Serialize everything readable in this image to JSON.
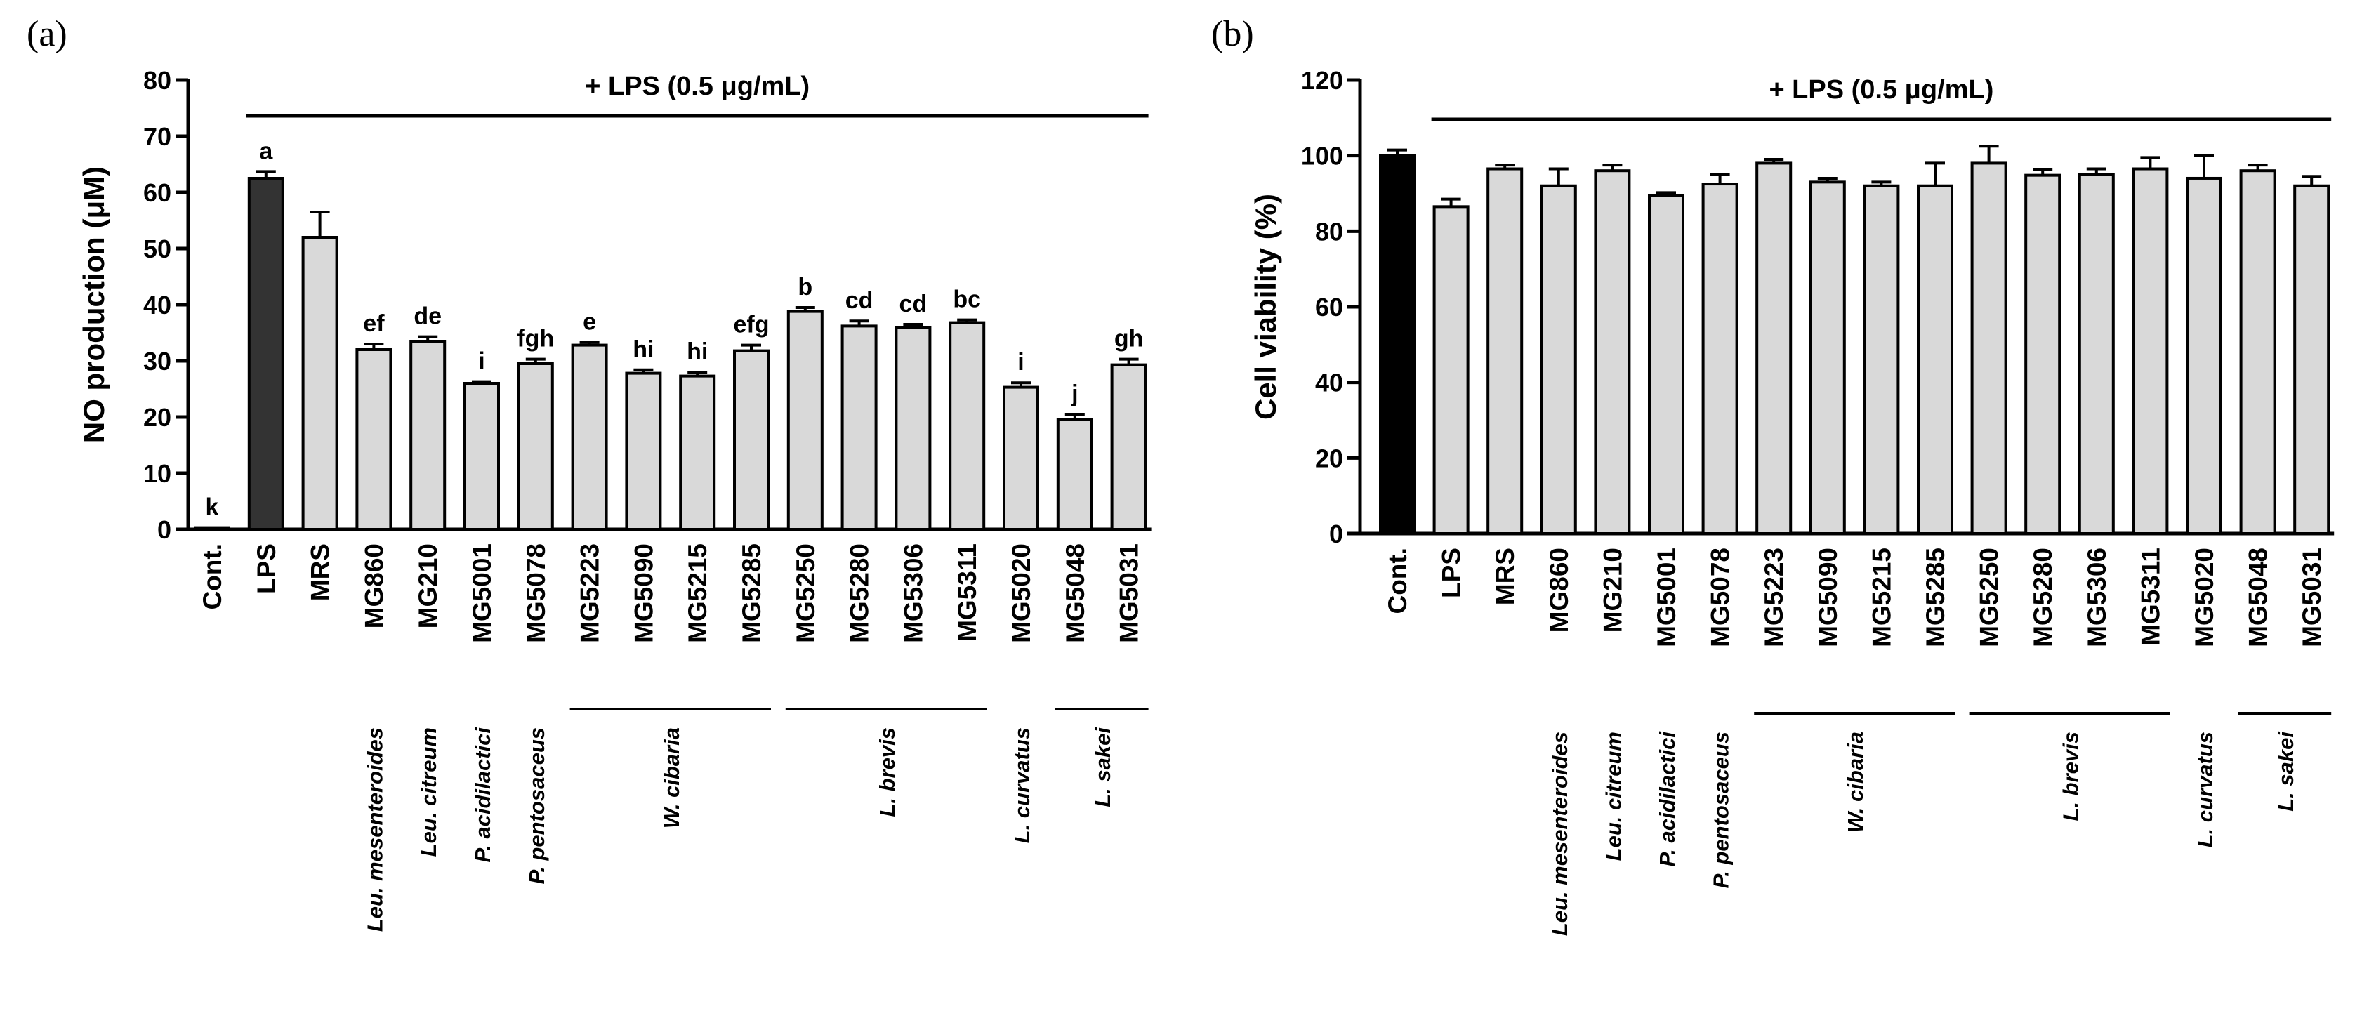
{
  "chart_data": [
    {
      "panel_label": "(a)",
      "type": "bar",
      "title": "+ LPS (0.5 μg/mL)",
      "xlabel": "",
      "ylabel": "NO production (μM)",
      "ylim": [
        0,
        80
      ],
      "yticks": [
        "0",
        "10",
        "20",
        "30",
        "40",
        "50",
        "60",
        "70",
        "80"
      ],
      "categories": [
        "Cont.",
        "LPS",
        "MRS",
        "MG860",
        "MG210",
        "MG5001",
        "MG5078",
        "MG5223",
        "MG5090",
        "MG5215",
        "MG5285",
        "MG5250",
        "MG5280",
        "MG5306",
        "MG5311",
        "MG5020",
        "MG5048",
        "MG5031"
      ],
      "values": [
        0.3,
        62.5,
        52.0,
        32.0,
        33.5,
        26.0,
        29.5,
        32.8,
        27.8,
        27.3,
        31.8,
        38.8,
        36.2,
        36.0,
        36.8,
        25.3,
        19.5,
        29.3
      ],
      "errors": [
        0,
        1.2,
        4.5,
        1.0,
        0.8,
        0.3,
        0.8,
        0.5,
        0.6,
        0.7,
        1.0,
        0.7,
        0.9,
        0.5,
        0.5,
        0.8,
        1.0,
        1.0
      ],
      "significance_letters": [
        "k",
        "a",
        "",
        "ef",
        "de",
        "i",
        "fgh",
        "e",
        "hi",
        "hi",
        "efg",
        "b",
        "cd",
        "cd",
        "bc",
        "i",
        "j",
        "gh"
      ],
      "bar_colors": [
        "#d9d9d9",
        "#333333",
        "#d9d9d9",
        "#d9d9d9",
        "#d9d9d9",
        "#d9d9d9",
        "#d9d9d9",
        "#d9d9d9",
        "#d9d9d9",
        "#d9d9d9",
        "#d9d9d9",
        "#d9d9d9",
        "#d9d9d9",
        "#d9d9d9",
        "#d9d9d9",
        "#d9d9d9",
        "#d9d9d9",
        "#d9d9d9"
      ],
      "lps_bracket": {
        "from_index": 1,
        "to_index": 17
      },
      "species_groups": [
        {
          "label": "Leu. mesenteroides",
          "from_index": 3,
          "to_index": 3
        },
        {
          "label": "Leu. citreum",
          "from_index": 4,
          "to_index": 4
        },
        {
          "label": "P. acidilactici",
          "from_index": 5,
          "to_index": 5
        },
        {
          "label": "P. pentosaceus",
          "from_index": 6,
          "to_index": 6
        },
        {
          "label": "W. cibaria",
          "from_index": 7,
          "to_index": 10
        },
        {
          "label": "L. brevis",
          "from_index": 11,
          "to_index": 14
        },
        {
          "label": "L. curvatus",
          "from_index": 15,
          "to_index": 15
        },
        {
          "label": "L. sakei",
          "from_index": 16,
          "to_index": 17
        }
      ]
    },
    {
      "panel_label": "(b)",
      "type": "bar",
      "title": "+ LPS (0.5 μg/mL)",
      "xlabel": "",
      "ylabel": "Cell viability (%)",
      "ylim": [
        0,
        120
      ],
      "yticks": [
        "0",
        "20",
        "40",
        "60",
        "80",
        "100",
        "120"
      ],
      "categories": [
        "Cont.",
        "LPS",
        "MRS",
        "MG860",
        "MG210",
        "MG5001",
        "MG5078",
        "MG5223",
        "MG5090",
        "MG5215",
        "MG5285",
        "MG5250",
        "MG5280",
        "MG5306",
        "MG5311",
        "MG5020",
        "MG5048",
        "MG5031"
      ],
      "values": [
        100.0,
        86.5,
        96.5,
        92.0,
        96.0,
        89.5,
        92.5,
        98.0,
        93.0,
        92.0,
        92.0,
        98.0,
        94.8,
        95.0,
        96.5,
        94.0,
        96.0,
        92.0
      ],
      "errors": [
        1.5,
        2.0,
        1.0,
        4.5,
        1.5,
        0.7,
        2.5,
        1.0,
        1.0,
        1.0,
        6.0,
        4.5,
        1.5,
        1.5,
        3.0,
        6.0,
        1.5,
        2.5
      ],
      "significance_letters": [
        "",
        "",
        "",
        "",
        "",
        "",
        "",
        "",
        "",
        "",
        "",
        "",
        "",
        "",
        "",
        "",
        "",
        ""
      ],
      "bar_colors": [
        "#000000",
        "#d9d9d9",
        "#d9d9d9",
        "#d9d9d9",
        "#d9d9d9",
        "#d9d9d9",
        "#d9d9d9",
        "#d9d9d9",
        "#d9d9d9",
        "#d9d9d9",
        "#d9d9d9",
        "#d9d9d9",
        "#d9d9d9",
        "#d9d9d9",
        "#d9d9d9",
        "#d9d9d9",
        "#d9d9d9",
        "#d9d9d9"
      ],
      "lps_bracket": {
        "from_index": 1,
        "to_index": 17
      },
      "species_groups": [
        {
          "label": "Leu. mesenteroides",
          "from_index": 3,
          "to_index": 3
        },
        {
          "label": "Leu. citreum",
          "from_index": 4,
          "to_index": 4
        },
        {
          "label": "P. acidilactici",
          "from_index": 5,
          "to_index": 5
        },
        {
          "label": "P. pentosaceus",
          "from_index": 6,
          "to_index": 6
        },
        {
          "label": "W. cibaria",
          "from_index": 7,
          "to_index": 10
        },
        {
          "label": "L. brevis",
          "from_index": 11,
          "to_index": 14
        },
        {
          "label": "L. curvatus",
          "from_index": 15,
          "to_index": 15
        },
        {
          "label": "L. sakei",
          "from_index": 16,
          "to_index": 17
        }
      ]
    }
  ]
}
